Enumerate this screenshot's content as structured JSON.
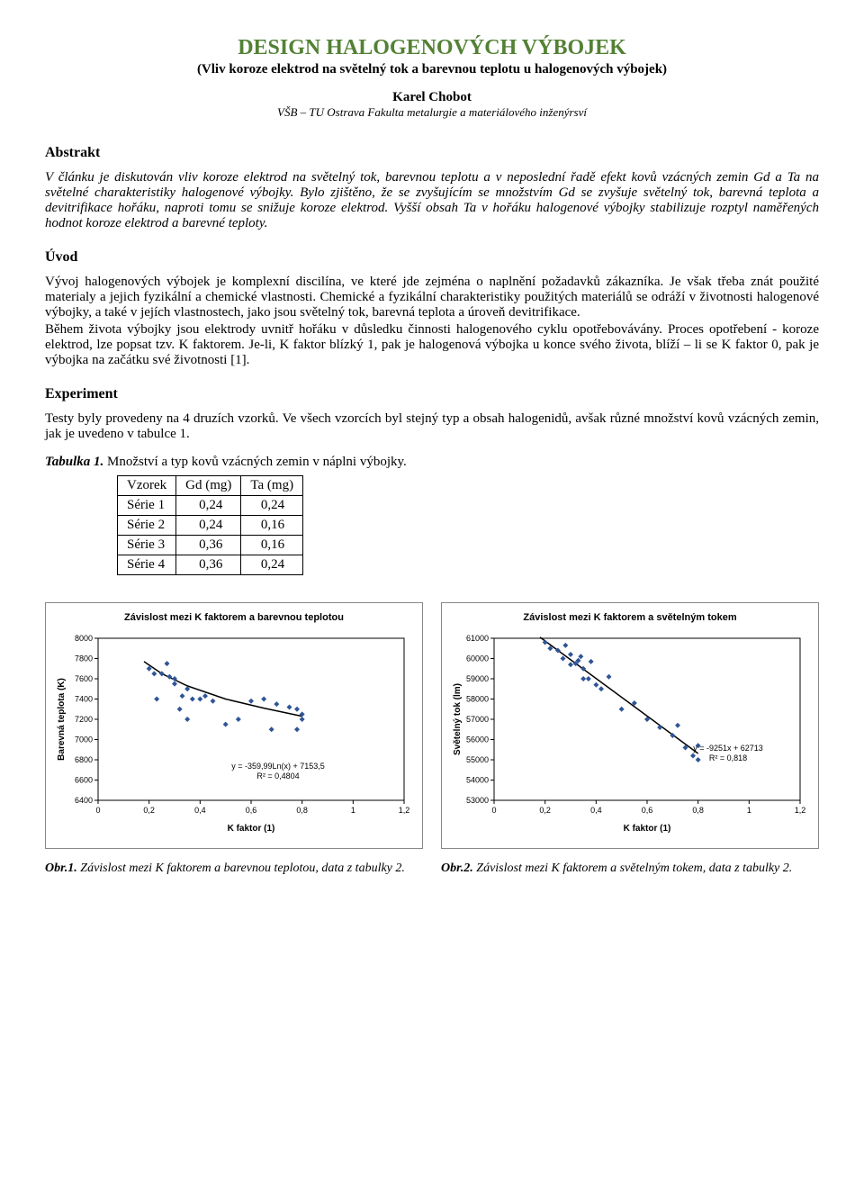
{
  "title": "DESIGN HALOGENOVÝCH VÝBOJEK",
  "subtitle": "(Vliv koroze elektrod na světelný tok a barevnou teplotu u halogenových výbojek)",
  "author": "Karel Chobot",
  "affiliation": "VŠB – TU Ostrava Fakulta metalurgie a materiálového inženýrsví",
  "abstract_head": "Abstrakt",
  "abstract_body": "V článku je diskutován vliv koroze elektrod na světelný tok, barevnou teplotu a v neposlední řadě efekt kovů vzácných zemin Gd a Ta na světelné charakteristiky halogenové výbojky. Bylo zjištěno, že se zvyšujícím se množstvím Gd se zvyšuje světelný tok, barevná teplota a devitrifikace hořáku, naproti tomu se snižuje koroze elektrod. Vyšší obsah Ta v hořáku halogenové výbojky stabilizuje rozptyl naměřených hodnot koroze elektrod a barevné teploty.",
  "intro_head": "Úvod",
  "intro_p1": "Vývoj halogenových výbojek je komplexní discilína, ve které jde zejména o naplnění požadavků zákazníka. Je však třeba znát použité materialy a jejich fyzikální a chemické vlastnosti. Chemické a fyzikální charakteristiky použitých materiálů se odráží v životnosti halogenové výbojky, a také v jejích vlastnostech, jako jsou světelný tok, barevná teplota a úroveň devitrifikace.",
  "intro_p2": "Během života výbojky jsou elektrody uvnitř hořáku v důsledku činnosti halogenového cyklu opotřebovávány. Proces opotřebení - koroze elektrod, lze popsat tzv. K faktorem. Je-li, K faktor blízký 1, pak je halogenová výbojka u konce svého života, blíží – li se K faktor 0, pak je výbojka na začátku své životnosti [1].",
  "exp_head": "Experiment",
  "exp_p1": "Testy byly provedeny na 4 druzích vzorků. Ve všech vzorcích byl stejný typ a obsah halogenidů, avšak různé množství kovů vzácných zemin, jak je uvedeno v tabulce 1.",
  "table1": {
    "caption_lead": "Tabulka 1.",
    "caption_rest": "  Množství a typ kovů vzácných zemin v náplni výbojky.",
    "headers": [
      "Vzorek",
      "Gd (mg)",
      "Ta (mg)"
    ],
    "rows": [
      [
        "Série 1",
        "0,24",
        "0,24"
      ],
      [
        "Série 2",
        "0,24",
        "0,16"
      ],
      [
        "Série 3",
        "0,36",
        "0,16"
      ],
      [
        "Série 4",
        "0,36",
        "0,24"
      ]
    ]
  },
  "chart1": {
    "type": "scatter-trend",
    "title": "Závislost mezi K faktorem a barevnou teplotou",
    "xlabel": "K faktor (1)",
    "ylabel": "Barevná teplota (K)",
    "xlim": [
      0,
      1.2
    ],
    "ylim": [
      6400,
      8000
    ],
    "xtick_labels": [
      "0",
      "0,2",
      "0,4",
      "0,6",
      "0,8",
      "1",
      "1,2"
    ],
    "ytick_step": 200,
    "marker_color": "#2f5597",
    "trend_color": "#000000",
    "bg_color": "#ffffff",
    "grid_color": "#000000",
    "plot_bg": "#ffffff",
    "marker_size": 3,
    "axis_fontsize": 9,
    "label_fontsize": 10,
    "eq_text": "y = -359,99Ln(x) + 7153,5",
    "r2_text": "R² = 0,4804",
    "points": [
      [
        0.2,
        7700
      ],
      [
        0.22,
        7650
      ],
      [
        0.23,
        7400
      ],
      [
        0.25,
        7650
      ],
      [
        0.27,
        7750
      ],
      [
        0.28,
        7620
      ],
      [
        0.3,
        7600
      ],
      [
        0.3,
        7550
      ],
      [
        0.32,
        7300
      ],
      [
        0.33,
        7430
      ],
      [
        0.35,
        7500
      ],
      [
        0.35,
        7200
      ],
      [
        0.37,
        7400
      ],
      [
        0.4,
        7400
      ],
      [
        0.42,
        7430
      ],
      [
        0.45,
        7380
      ],
      [
        0.5,
        7150
      ],
      [
        0.55,
        7200
      ],
      [
        0.6,
        7380
      ],
      [
        0.65,
        7400
      ],
      [
        0.68,
        7100
      ],
      [
        0.7,
        7350
      ],
      [
        0.75,
        7320
      ],
      [
        0.78,
        7100
      ],
      [
        0.78,
        7300
      ],
      [
        0.8,
        7200
      ],
      [
        0.8,
        7250
      ]
    ],
    "trend": [
      [
        0.18,
        7770
      ],
      [
        0.25,
        7650
      ],
      [
        0.35,
        7530
      ],
      [
        0.5,
        7400
      ],
      [
        0.65,
        7310
      ],
      [
        0.8,
        7230
      ]
    ]
  },
  "chart2": {
    "type": "scatter-trend",
    "title": "Závislost mezi K faktorem a světelným tokem",
    "xlabel": "K faktor (1)",
    "ylabel": "Světelný tok (lm)",
    "xlim": [
      0,
      1.2
    ],
    "ylim": [
      53000,
      61000
    ],
    "xtick_labels": [
      "0",
      "0,2",
      "0,4",
      "0,6",
      "0,8",
      "1",
      "1,2"
    ],
    "ytick_step": 1000,
    "marker_color": "#2f5597",
    "trend_color": "#000000",
    "bg_color": "#ffffff",
    "grid_color": "#000000",
    "plot_bg": "#ffffff",
    "marker_size": 3,
    "axis_fontsize": 9,
    "label_fontsize": 10,
    "eq_text": "y = -9251x + 62713",
    "r2_text": "R² = 0,818",
    "points": [
      [
        0.2,
        60800
      ],
      [
        0.22,
        60500
      ],
      [
        0.25,
        60400
      ],
      [
        0.27,
        60000
      ],
      [
        0.28,
        60650
      ],
      [
        0.3,
        60200
      ],
      [
        0.3,
        59700
      ],
      [
        0.32,
        59750
      ],
      [
        0.33,
        59900
      ],
      [
        0.34,
        60100
      ],
      [
        0.35,
        59500
      ],
      [
        0.35,
        59000
      ],
      [
        0.37,
        59000
      ],
      [
        0.38,
        59850
      ],
      [
        0.4,
        58700
      ],
      [
        0.42,
        58500
      ],
      [
        0.45,
        59100
      ],
      [
        0.5,
        57500
      ],
      [
        0.55,
        57800
      ],
      [
        0.6,
        57000
      ],
      [
        0.65,
        56600
      ],
      [
        0.7,
        56200
      ],
      [
        0.72,
        56700
      ],
      [
        0.75,
        55600
      ],
      [
        0.78,
        55200
      ],
      [
        0.8,
        55000
      ],
      [
        0.8,
        55700
      ]
    ],
    "trend": [
      [
        0.18,
        61050
      ],
      [
        0.8,
        55310
      ]
    ]
  },
  "fig1": {
    "lead": "Obr.1.",
    "rest": " Závislost mezi K faktorem a barevnou teplotou, data z tabulky 2."
  },
  "fig2": {
    "lead": "Obr.2.",
    "rest": " Závislost mezi K faktorem a světelným tokem, data z tabulky 2."
  }
}
